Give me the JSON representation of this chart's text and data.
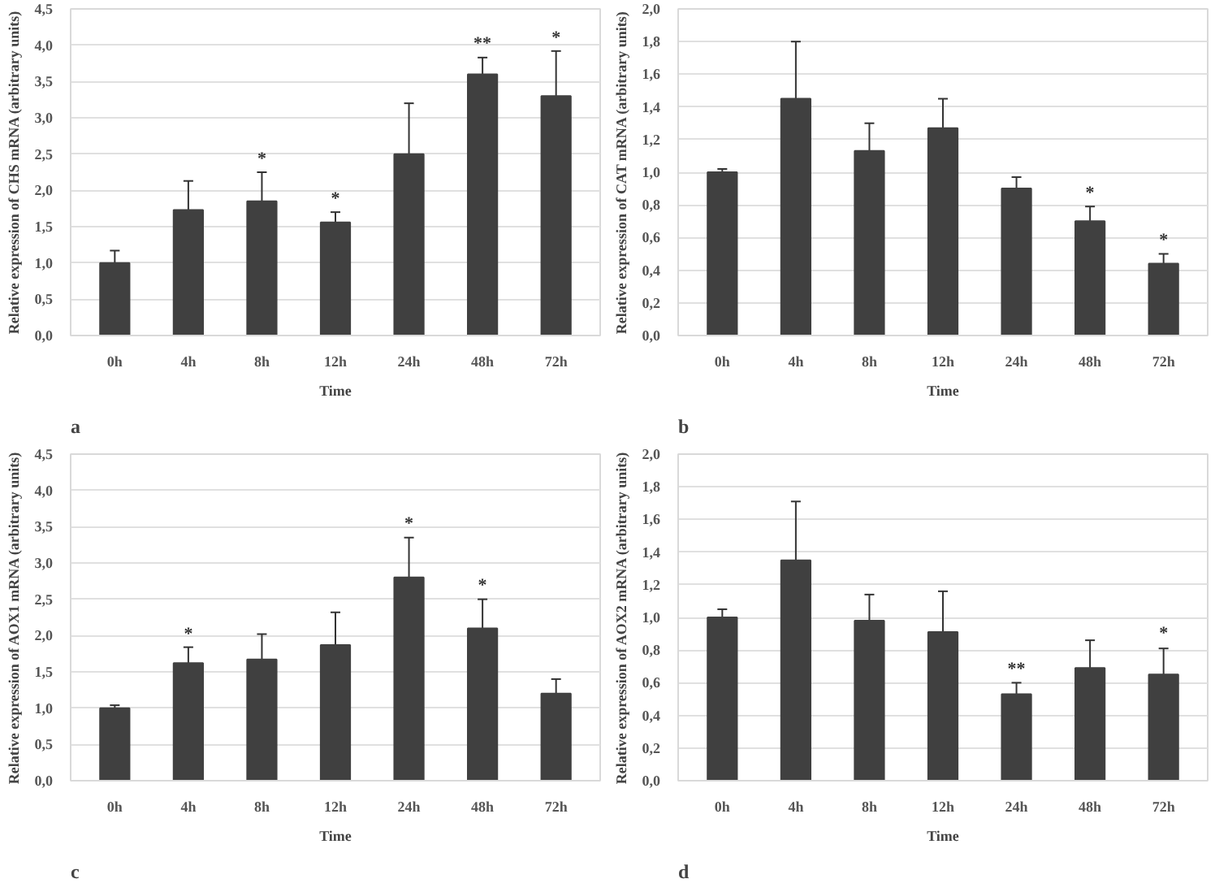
{
  "chart_data": [
    {
      "type": "bar",
      "xlabel": "Time",
      "ylabel": "Relative expression of CHS mRNA (arbitrary units)",
      "categories": [
        "0h",
        "4h",
        "8h",
        "12h",
        "24h",
        "48h",
        "72h"
      ],
      "values": [
        1.0,
        1.73,
        1.85,
        1.56,
        2.5,
        3.6,
        3.3
      ],
      "errors": [
        0.17,
        0.4,
        0.4,
        0.14,
        0.7,
        0.23,
        0.62
      ],
      "color": "#404040",
      "ylim": [
        0,
        4.5
      ],
      "yticks": [
        {
          "value": 0,
          "label": "0,0"
        },
        {
          "value": 0.5,
          "label": "0,5"
        },
        {
          "value": 1,
          "label": "1,0"
        },
        {
          "value": 1.5,
          "label": "1,5"
        },
        {
          "value": 2,
          "label": "2,0"
        },
        {
          "value": 2.5,
          "label": "2,5"
        },
        {
          "value": 3,
          "label": "3,0"
        },
        {
          "value": 3.5,
          "label": "3,5"
        },
        {
          "value": 4,
          "label": "4,0"
        },
        {
          "value": 4.5,
          "label": "4,5"
        }
      ],
      "grid": "y",
      "annotations": [
        "a",
        {
          "text": "*",
          "x": "8h",
          "y": 2.3
        },
        {
          "text": "*",
          "x": "12h",
          "y": 1.75
        },
        {
          "text": "**",
          "x": "48h",
          "y": 3.88
        },
        {
          "text": "*",
          "x": "72h",
          "y": 3.96
        }
      ]
    },
    {
      "type": "bar",
      "xlabel": "Time",
      "ylabel": "Relative expression of CAT mRNA (arbitrary units)",
      "categories": [
        "0h",
        "4h",
        "8h",
        "12h",
        "24h",
        "48h",
        "72h"
      ],
      "values": [
        1.0,
        1.45,
        1.13,
        1.27,
        0.9,
        0.7,
        0.44
      ],
      "errors": [
        0.02,
        0.35,
        0.17,
        0.18,
        0.07,
        0.09,
        0.06
      ],
      "color": "#404040",
      "ylim": [
        0,
        2.0
      ],
      "yticks": [
        {
          "value": 0,
          "label": "0,0"
        },
        {
          "value": 0.2,
          "label": "0,2"
        },
        {
          "value": 0.4,
          "label": "0,4"
        },
        {
          "value": 0.6,
          "label": "0,6"
        },
        {
          "value": 0.8,
          "label": "0,8"
        },
        {
          "value": 1,
          "label": "1,0"
        },
        {
          "value": 1.2,
          "label": "1,2"
        },
        {
          "value": 1.4,
          "label": "1,4"
        },
        {
          "value": 1.6,
          "label": "1,6"
        },
        {
          "value": 1.8,
          "label": "1,8"
        },
        {
          "value": 2,
          "label": "2,0"
        }
      ],
      "grid": "y",
      "annotations": [
        "b",
        {
          "text": "*",
          "x": "48h",
          "y": 0.81
        },
        {
          "text": "*",
          "x": "72h",
          "y": 0.52
        }
      ]
    },
    {
      "type": "bar",
      "xlabel": "Time",
      "ylabel": "Relative expression of AOX1 mRNA (arbitrary units)",
      "categories": [
        "0h",
        "4h",
        "8h",
        "12h",
        "24h",
        "48h",
        "72h"
      ],
      "values": [
        1.0,
        1.62,
        1.67,
        1.87,
        2.8,
        2.1,
        1.2
      ],
      "errors": [
        0.04,
        0.22,
        0.35,
        0.45,
        0.55,
        0.4,
        0.2
      ],
      "color": "#404040",
      "ylim": [
        0,
        4.5
      ],
      "yticks": [
        {
          "value": 0,
          "label": "0,0"
        },
        {
          "value": 0.5,
          "label": "0,5"
        },
        {
          "value": 1,
          "label": "1,0"
        },
        {
          "value": 1.5,
          "label": "1,5"
        },
        {
          "value": 2,
          "label": "2,0"
        },
        {
          "value": 2.5,
          "label": "2,5"
        },
        {
          "value": 3,
          "label": "3,0"
        },
        {
          "value": 3.5,
          "label": "3,5"
        },
        {
          "value": 4,
          "label": "4,0"
        },
        {
          "value": 4.5,
          "label": "4,5"
        }
      ],
      "grid": "y",
      "annotations": [
        "c",
        {
          "text": "*",
          "x": "4h",
          "y": 1.88
        },
        {
          "text": "*",
          "x": "24h",
          "y": 3.4
        },
        {
          "text": "*",
          "x": "48h",
          "y": 2.55
        }
      ]
    },
    {
      "type": "bar",
      "xlabel": "Time",
      "ylabel": "Relative expression of AOX2 mRNA (arbitrary units)",
      "categories": [
        "0h",
        "4h",
        "8h",
        "12h",
        "24h",
        "48h",
        "72h"
      ],
      "values": [
        1.0,
        1.35,
        0.98,
        0.91,
        0.53,
        0.69,
        0.65
      ],
      "errors": [
        0.05,
        0.36,
        0.16,
        0.25,
        0.07,
        0.17,
        0.16
      ],
      "color": "#404040",
      "ylim": [
        0,
        2.0
      ],
      "yticks": [
        {
          "value": 0,
          "label": "0,0"
        },
        {
          "value": 0.2,
          "label": "0,2"
        },
        {
          "value": 0.4,
          "label": "0,4"
        },
        {
          "value": 0.6,
          "label": "0,6"
        },
        {
          "value": 0.8,
          "label": "0,8"
        },
        {
          "value": 1,
          "label": "1,0"
        },
        {
          "value": 1.2,
          "label": "1,2"
        },
        {
          "value": 1.4,
          "label": "1,4"
        },
        {
          "value": 1.6,
          "label": "1,6"
        },
        {
          "value": 1.8,
          "label": "1,8"
        },
        {
          "value": 2,
          "label": "2,0"
        }
      ],
      "grid": "y",
      "annotations": [
        "d",
        {
          "text": "**",
          "x": "24h",
          "y": 0.62
        },
        {
          "text": "*",
          "x": "72h",
          "y": 0.84
        }
      ]
    }
  ]
}
